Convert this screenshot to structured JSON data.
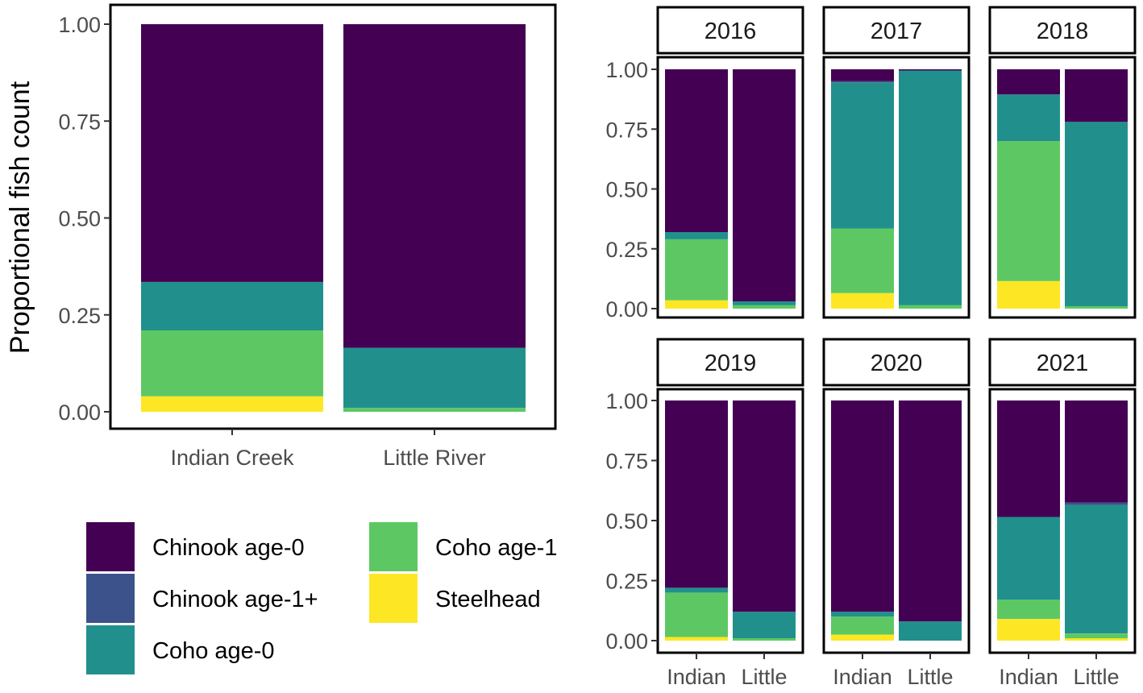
{
  "chart_data": [
    {
      "type": "bar",
      "stacked": true,
      "title": "",
      "xlabel": "",
      "ylabel": "Proportional fish count",
      "ylim": [
        0,
        1
      ],
      "y_ticks": [
        "0.00",
        "0.25",
        "0.50",
        "0.75",
        "1.00"
      ],
      "categories": [
        "Indian Creek",
        "Little River"
      ],
      "series": [
        {
          "name": "Steelhead",
          "values": [
            0.04,
            0.0
          ]
        },
        {
          "name": "Coho age-1",
          "values": [
            0.17,
            0.01
          ]
        },
        {
          "name": "Coho age-0",
          "values": [
            0.125,
            0.155
          ]
        },
        {
          "name": "Chinook age-1+",
          "values": [
            0.0,
            0.0
          ]
        },
        {
          "name": "Chinook age-0",
          "values": [
            0.665,
            0.835
          ]
        }
      ]
    },
    {
      "type": "bar",
      "stacked": true,
      "facet": "year",
      "ylim": [
        0,
        1
      ],
      "y_ticks": [
        "0.00",
        "0.25",
        "0.50",
        "0.75",
        "1.00"
      ],
      "categories": [
        "Indian",
        "Little"
      ],
      "panels": [
        {
          "year": "2016",
          "series": [
            {
              "name": "Steelhead",
              "values": [
                0.035,
                0.0
              ]
            },
            {
              "name": "Coho age-1",
              "values": [
                0.255,
                0.015
              ]
            },
            {
              "name": "Coho age-0",
              "values": [
                0.03,
                0.015
              ]
            },
            {
              "name": "Chinook age-1+",
              "values": [
                0.0,
                0.0
              ]
            },
            {
              "name": "Chinook age-0",
              "values": [
                0.68,
                0.97
              ]
            }
          ]
        },
        {
          "year": "2017",
          "series": [
            {
              "name": "Steelhead",
              "values": [
                0.065,
                0.0
              ]
            },
            {
              "name": "Coho age-1",
              "values": [
                0.27,
                0.015
              ]
            },
            {
              "name": "Coho age-0",
              "values": [
                0.61,
                0.98
              ]
            },
            {
              "name": "Chinook age-1+",
              "values": [
                0.005,
                0.0
              ]
            },
            {
              "name": "Chinook age-0",
              "values": [
                0.05,
                0.005
              ]
            }
          ]
        },
        {
          "year": "2018",
          "series": [
            {
              "name": "Steelhead",
              "values": [
                0.115,
                0.0
              ]
            },
            {
              "name": "Coho age-1",
              "values": [
                0.585,
                0.01
              ]
            },
            {
              "name": "Coho age-0",
              "values": [
                0.195,
                0.77
              ]
            },
            {
              "name": "Chinook age-1+",
              "values": [
                0.0,
                0.0
              ]
            },
            {
              "name": "Chinook age-0",
              "values": [
                0.105,
                0.22
              ]
            }
          ]
        },
        {
          "year": "2019",
          "series": [
            {
              "name": "Steelhead",
              "values": [
                0.015,
                0.0
              ]
            },
            {
              "name": "Coho age-1",
              "values": [
                0.185,
                0.01
              ]
            },
            {
              "name": "Coho age-0",
              "values": [
                0.02,
                0.11
              ]
            },
            {
              "name": "Chinook age-1+",
              "values": [
                0.0,
                0.0
              ]
            },
            {
              "name": "Chinook age-0",
              "values": [
                0.78,
                0.88
              ]
            }
          ]
        },
        {
          "year": "2020",
          "series": [
            {
              "name": "Steelhead",
              "values": [
                0.025,
                0.0
              ]
            },
            {
              "name": "Coho age-1",
              "values": [
                0.075,
                0.0
              ]
            },
            {
              "name": "Coho age-0",
              "values": [
                0.02,
                0.08
              ]
            },
            {
              "name": "Chinook age-1+",
              "values": [
                0.0,
                0.0
              ]
            },
            {
              "name": "Chinook age-0",
              "values": [
                0.88,
                0.92
              ]
            }
          ]
        },
        {
          "year": "2021",
          "series": [
            {
              "name": "Steelhead",
              "values": [
                0.09,
                0.01
              ]
            },
            {
              "name": "Coho age-1",
              "values": [
                0.08,
                0.02
              ]
            },
            {
              "name": "Coho age-0",
              "values": [
                0.345,
                0.535
              ]
            },
            {
              "name": "Chinook age-1+",
              "values": [
                0.0,
                0.01
              ]
            },
            {
              "name": "Chinook age-0",
              "values": [
                0.485,
                0.425
              ]
            }
          ]
        }
      ]
    }
  ],
  "legend": {
    "items": [
      {
        "label": "Chinook age-0",
        "color": "#440154"
      },
      {
        "label": "Chinook age-1+",
        "color": "#3b528b"
      },
      {
        "label": "Coho age-0",
        "color": "#21908c"
      },
      {
        "label": "Coho age-1",
        "color": "#5dc863"
      },
      {
        "label": "Steelhead",
        "color": "#fde725"
      }
    ]
  },
  "colors": {
    "Chinook age-0": "#440154",
    "Chinook age-1+": "#3b528b",
    "Coho age-0": "#21908c",
    "Coho age-1": "#5dc863",
    "Steelhead": "#fde725"
  }
}
